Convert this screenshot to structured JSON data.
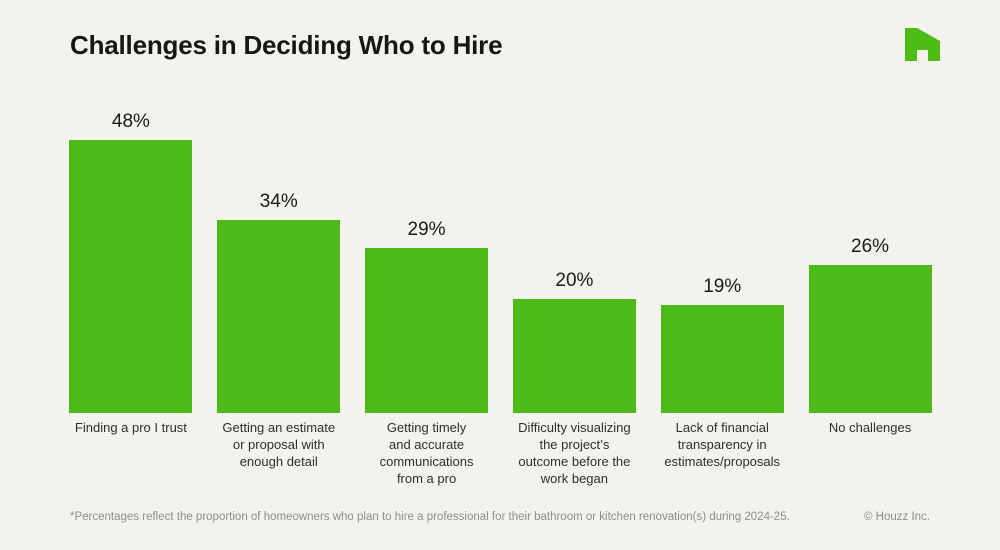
{
  "header": {
    "title": "Challenges in Deciding Who to Hire",
    "logo_icon": "houzz-logo"
  },
  "colors": {
    "background": "#F4F2EC",
    "bar": "#4CBB17",
    "logo": "#4DBC15",
    "value_text": "#1A1A17",
    "category_text": "#2F2F2B",
    "footnote_text": "#8E8E88"
  },
  "chart_data": {
    "type": "bar",
    "title": "Challenges in Deciding Who to Hire",
    "categories": [
      "Finding a pro I trust",
      "Getting an estimate or proposal with enough detail",
      "Getting timely and accurate communications from a pro",
      "Difficulty visualizing the project’s outcome before the work began",
      "Lack of financial transparency in estimates/proposals",
      "No challenges"
    ],
    "category_lines": [
      [
        "Finding a pro I trust"
      ],
      [
        "Getting an estimate",
        "or proposal with",
        "enough detail"
      ],
      [
        "Getting timely",
        "and accurate",
        "communications",
        "from a pro"
      ],
      [
        "Difficulty visualizing",
        "the project’s",
        "outcome before the",
        "work began"
      ],
      [
        "Lack of financial",
        "transparency in",
        "estimates/proposals"
      ],
      [
        "No challenges"
      ]
    ],
    "values": [
      48,
      34,
      29,
      20,
      19,
      26
    ],
    "value_labels": [
      "48%",
      "34%",
      "29%",
      "20%",
      "19%",
      "26%"
    ],
    "ylim": [
      0,
      48
    ],
    "grid": false,
    "legend": "none",
    "bar_color": "#4CBB17",
    "xlabel": "",
    "ylabel": ""
  },
  "footer": {
    "note": "*Percentages reflect the proportion of homeowners who plan to hire a professional for their bathroom or kitchen renovation(s) during 2024-25.",
    "copyright": "© Houzz Inc."
  }
}
